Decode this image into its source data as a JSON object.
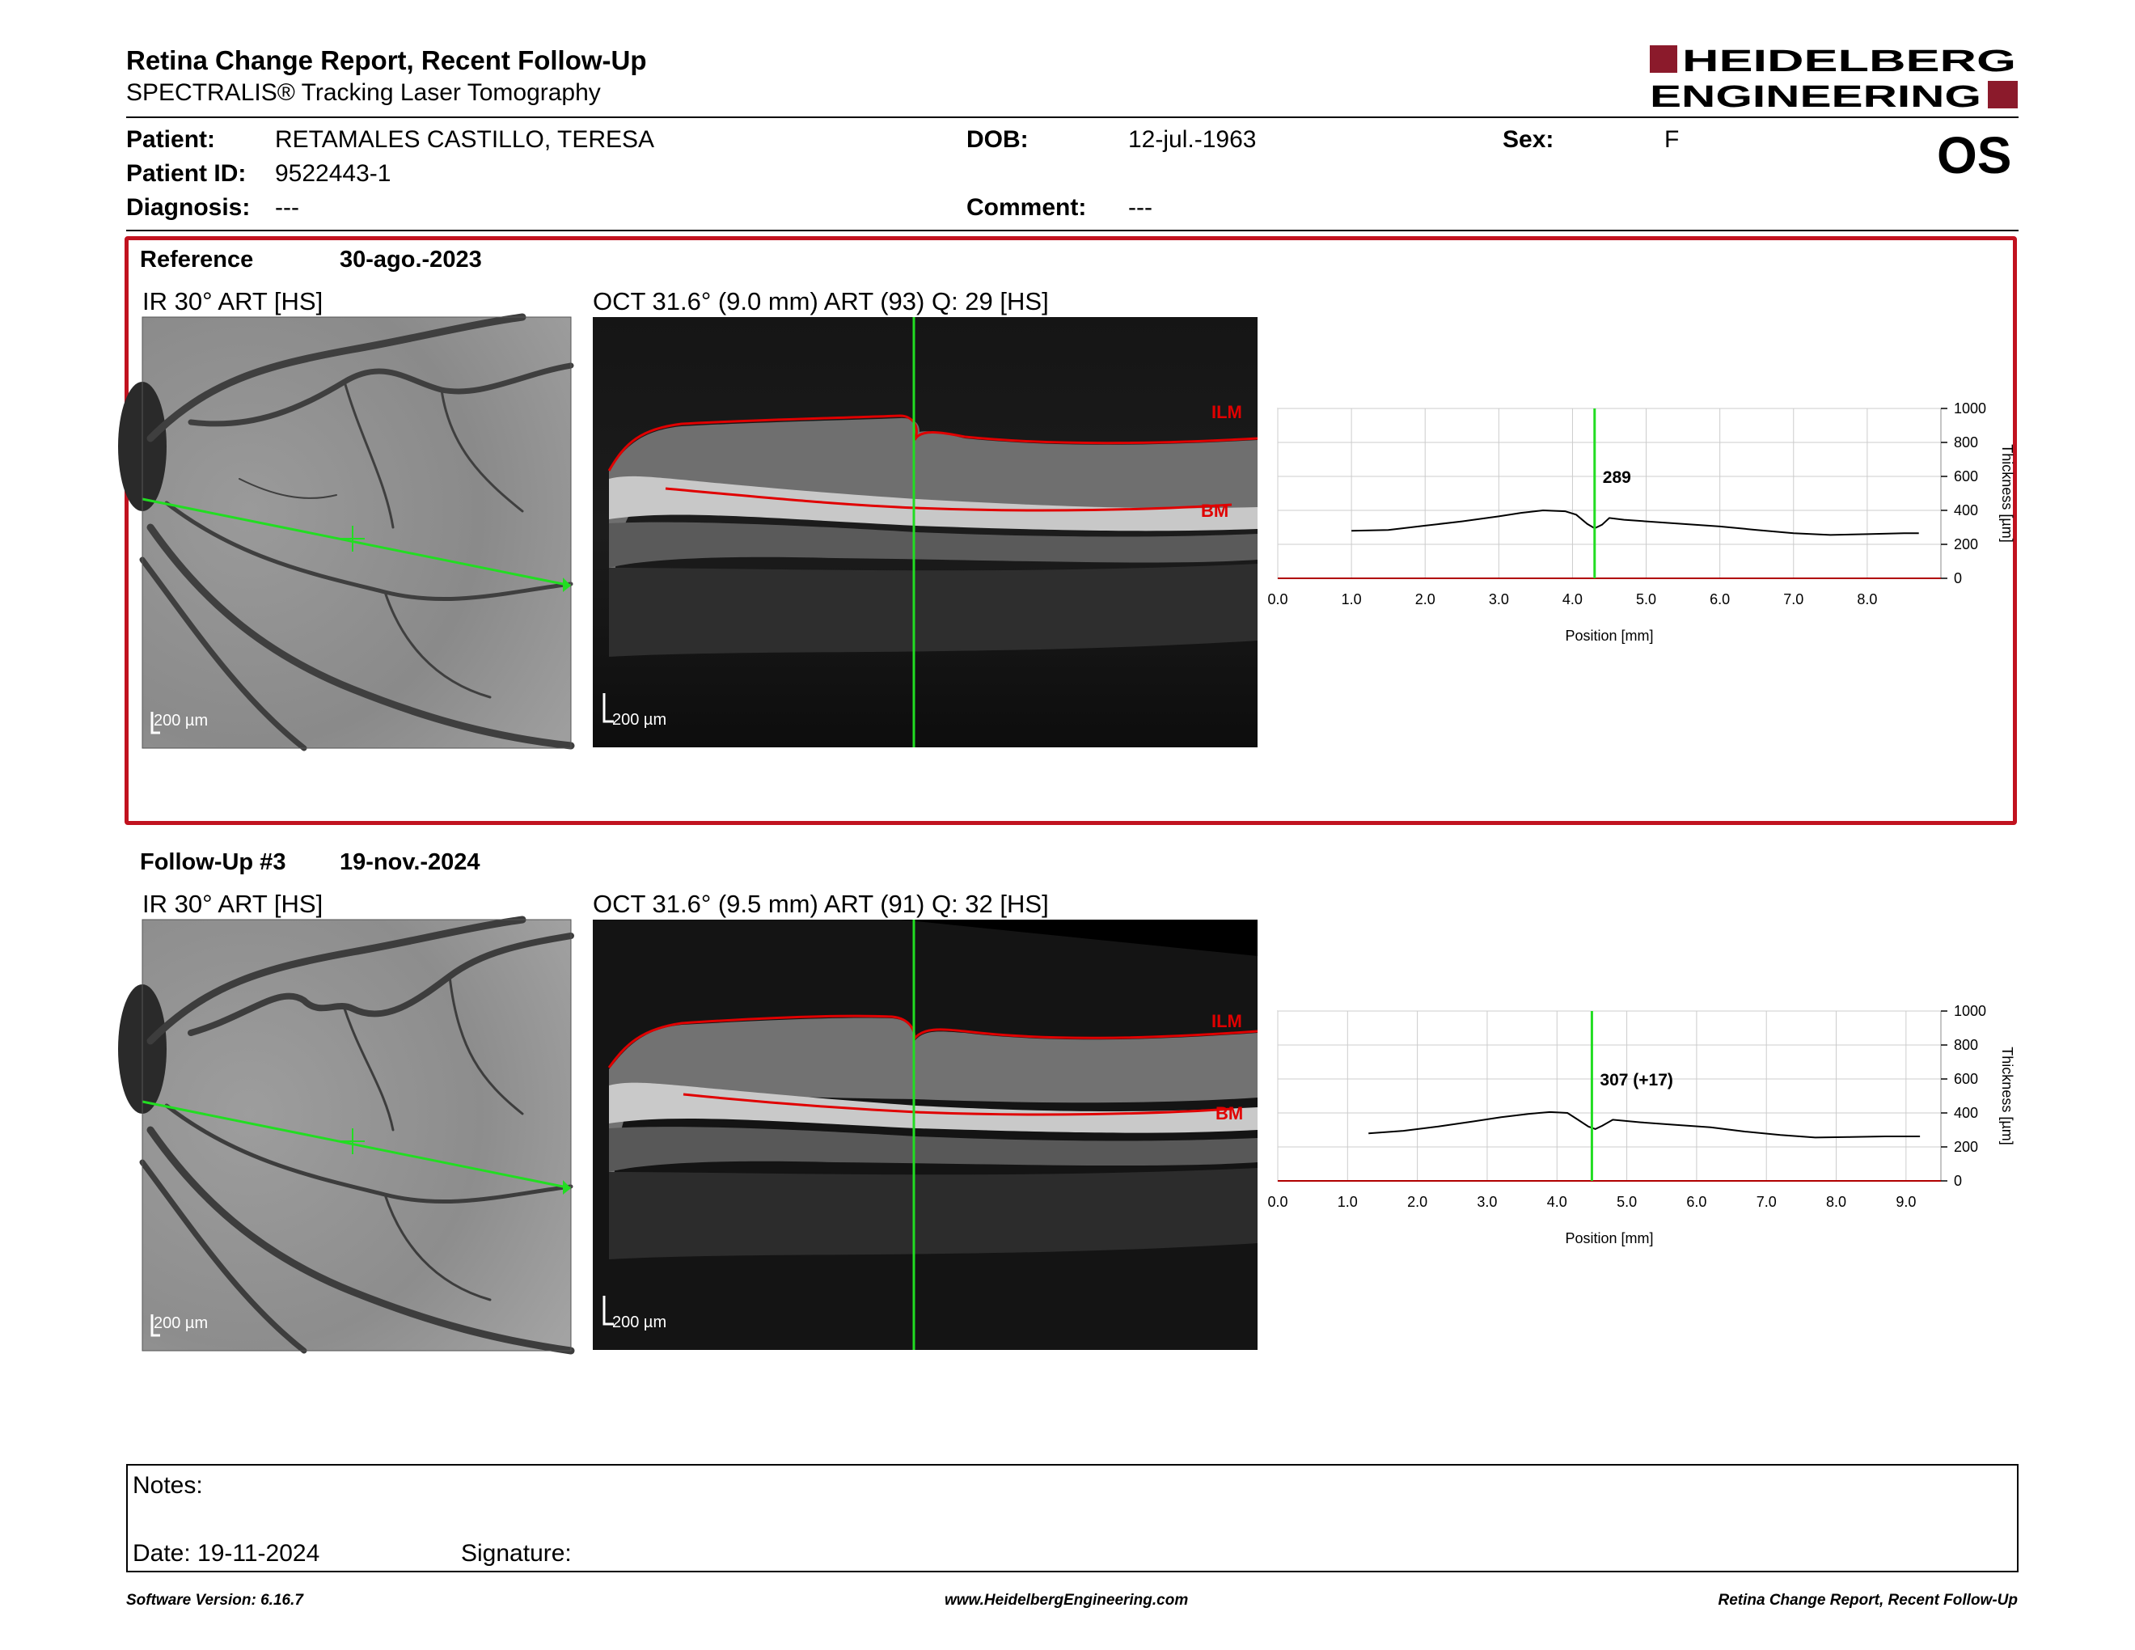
{
  "header": {
    "title": "Retina Change Report, Recent Follow-Up",
    "subtitle": "SPECTRALIS® Tracking Laser Tomography",
    "logo_line1": "HEIDELBERG",
    "logo_line2": "ENGINEERING",
    "brand_color": "#8b1a2b"
  },
  "patient": {
    "patient_label": "Patient:",
    "patient_value": "RETAMALES CASTILLO, TERESA",
    "id_label": "Patient ID:",
    "id_value": "9522443-1",
    "diagnosis_label": "Diagnosis:",
    "diagnosis_value": "---",
    "dob_label": "DOB:",
    "dob_value": "12-jul.-1963",
    "comment_label": "Comment:",
    "comment_value": "---",
    "sex_label": "Sex:",
    "sex_value": "F",
    "eye": "OS"
  },
  "reference": {
    "label": "Reference",
    "date": "30-ago.-2023",
    "ir_title": "IR 30° ART [HS]",
    "oct_title": "OCT 31.6° (9.0 mm) ART (93) Q: 29 [HS]",
    "ir_scale": "200 µm",
    "oct_scale": "200 µm",
    "ilm_label": "ILM",
    "bm_label": "BM",
    "highlight_color": "#c1121f"
  },
  "followup": {
    "label": "Follow-Up #3",
    "date": "19-nov.-2024",
    "ir_title": "IR 30° ART [HS]",
    "oct_title": "OCT 31.6° (9.5 mm) ART (91) Q: 32 [HS]",
    "ir_scale": "200 µm",
    "oct_scale": "200 µm",
    "ilm_label": "ILM",
    "bm_label": "BM"
  },
  "chart_data": [
    {
      "type": "line",
      "x_ticks": [
        "0.0",
        "1.0",
        "2.0",
        "3.0",
        "4.0",
        "5.0",
        "6.0",
        "7.0",
        "8.0"
      ],
      "y_ticks": [
        "0",
        "200",
        "400",
        "600",
        "800",
        "1000"
      ],
      "xlabel": "Position [mm]",
      "ylabel": "Thickness [µm]",
      "xlim": [
        0,
        9.0
      ],
      "ylim": [
        0,
        1000
      ],
      "marker_x": 4.3,
      "marker_label": "289",
      "grid": true,
      "series": [
        {
          "x": [
            1.0,
            1.5,
            2.0,
            2.5,
            3.0,
            3.3,
            3.6,
            3.9,
            4.05,
            4.2,
            4.3,
            4.4,
            4.5,
            4.7,
            5.0,
            5.5,
            6.0,
            6.5,
            7.0,
            7.5,
            8.0,
            8.5,
            8.7
          ],
          "values": [
            280,
            285,
            310,
            335,
            365,
            385,
            400,
            395,
            375,
            320,
            295,
            315,
            355,
            345,
            335,
            320,
            305,
            285,
            265,
            255,
            260,
            265,
            265
          ]
        }
      ]
    },
    {
      "type": "line",
      "x_ticks": [
        "0.0",
        "1.0",
        "2.0",
        "3.0",
        "4.0",
        "5.0",
        "6.0",
        "7.0",
        "8.0",
        "9.0"
      ],
      "y_ticks": [
        "0",
        "200",
        "400",
        "600",
        "800",
        "1000"
      ],
      "xlabel": "Position [mm]",
      "ylabel": "Thickness [µm]",
      "xlim": [
        0,
        9.5
      ],
      "ylim": [
        0,
        1000
      ],
      "marker_x": 4.5,
      "marker_label": "307 (+17)",
      "grid": true,
      "series": [
        {
          "x": [
            1.3,
            1.8,
            2.3,
            2.8,
            3.2,
            3.6,
            3.9,
            4.15,
            4.3,
            4.45,
            4.55,
            4.65,
            4.8,
            5.2,
            5.7,
            6.2,
            6.7,
            7.2,
            7.7,
            8.2,
            8.7,
            9.2
          ],
          "values": [
            280,
            295,
            320,
            350,
            375,
            395,
            405,
            400,
            360,
            320,
            305,
            325,
            360,
            345,
            330,
            315,
            290,
            270,
            255,
            258,
            262,
            262
          ]
        }
      ]
    }
  ],
  "notes": {
    "notes_label": "Notes:",
    "date_label": "Date: 19-11-2024",
    "signature_label": "Signature:"
  },
  "footer": {
    "version": "Software Version: 6.16.7",
    "url": "www.HeidelbergEngineering.com",
    "report_name": "Retina Change Report, Recent Follow-Up"
  }
}
